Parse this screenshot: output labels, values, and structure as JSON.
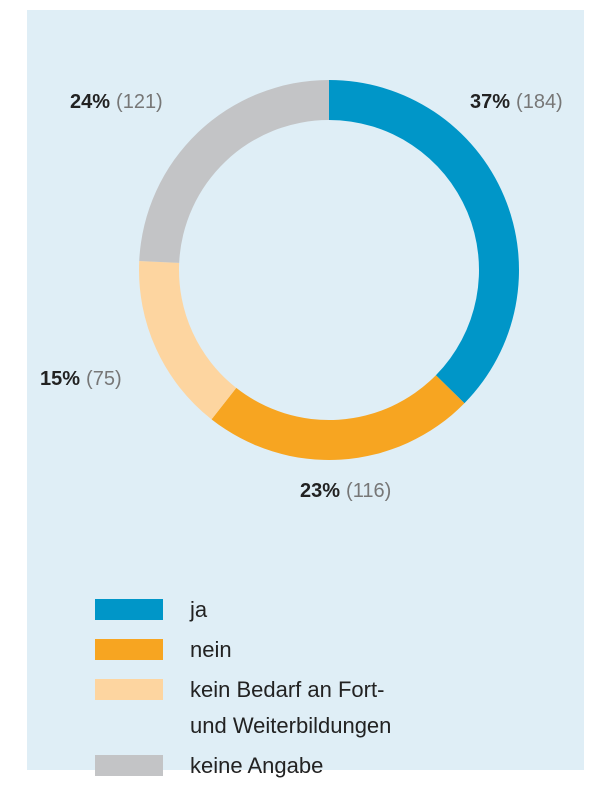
{
  "chart_data": {
    "type": "donut",
    "categories": [
      "ja",
      "nein",
      "kein Bedarf an Fort- und Weiterbildungen",
      "keine Angabe"
    ],
    "values": [
      37,
      23,
      15,
      24
    ],
    "value_labels": [
      "37%",
      "23%",
      "15%",
      "24%"
    ],
    "count_labels": [
      "(184)",
      "(116)",
      "(75)",
      "(121)"
    ],
    "colors": [
      "#0096c8",
      "#f7a521",
      "#fdd5a0",
      "#c3c4c6"
    ]
  }
}
